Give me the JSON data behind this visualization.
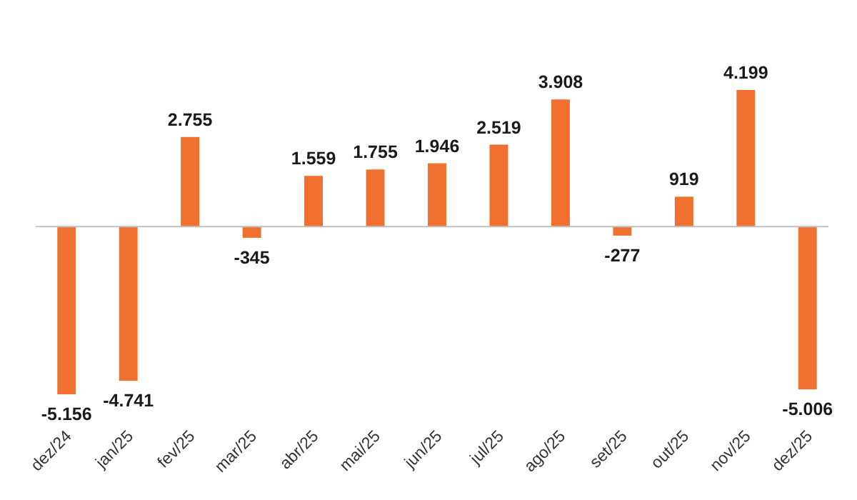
{
  "chart_data": {
    "type": "bar",
    "categories": [
      "dez/24",
      "jan/25",
      "fev/25",
      "mar/25",
      "abr/25",
      "mai/25",
      "jun/25",
      "jul/25",
      "ago/25",
      "set/25",
      "out/25",
      "nov/25",
      "dez/25"
    ],
    "values": [
      -5156,
      -4741,
      2755,
      -345,
      1559,
      1755,
      1946,
      2519,
      3908,
      -277,
      919,
      4199,
      -5006
    ],
    "value_labels": [
      "-5.156",
      "-4.741",
      "2.755",
      "-345",
      "1.559",
      "1.755",
      "1.946",
      "2.519",
      "3.908",
      "-277",
      "919",
      "4.199",
      "-5.006"
    ],
    "color": "#f07030"
  }
}
